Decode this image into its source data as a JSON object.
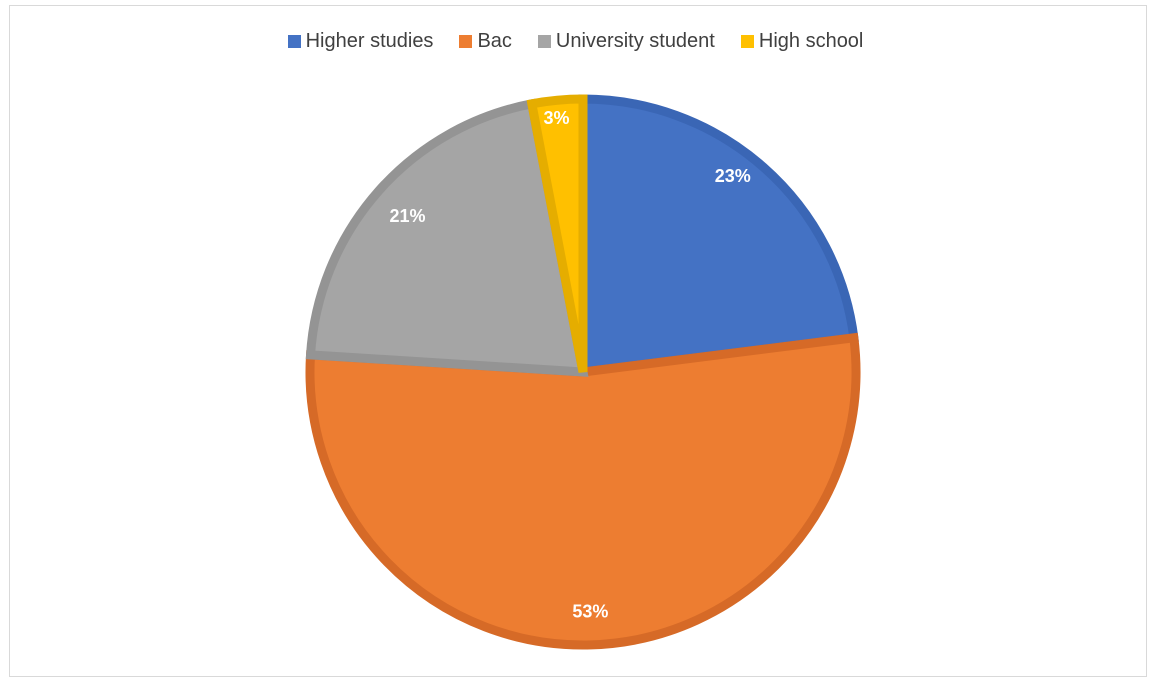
{
  "chart_data": {
    "type": "pie",
    "title": "",
    "legend_position": "top",
    "slices": [
      {
        "name": "Higher studies",
        "value": 23,
        "label": "23%",
        "color": "#4472C4",
        "stroke": "#3A66B5"
      },
      {
        "name": "Bac",
        "value": 53,
        "label": "53%",
        "color": "#ED7D31",
        "stroke": "#D66A27"
      },
      {
        "name": "University student",
        "value": 21,
        "label": "21%",
        "color": "#A5A5A5",
        "stroke": "#949494"
      },
      {
        "name": "High school",
        "value": 3,
        "label": "3%",
        "color": "#FFC000",
        "stroke": "#E5AD00"
      }
    ]
  }
}
